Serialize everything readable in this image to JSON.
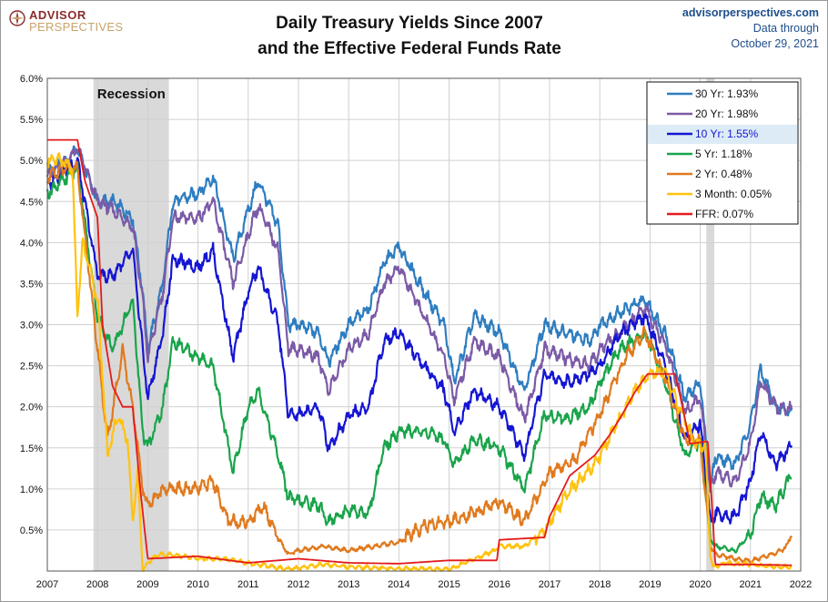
{
  "logo": {
    "line1": "ADVISOR",
    "line2": "PERSPECTIVES"
  },
  "title": {
    "line1": "Daily Treasury Yields Since 2007",
    "line2": "and the Effective Federal Funds Rate"
  },
  "source": {
    "site": "advisorperspectives.com",
    "line2": "Data through",
    "line3": "October 29, 2021"
  },
  "chart_data": {
    "type": "line",
    "title": "Daily Treasury Yields Since 2007 and the Effective Federal Funds Rate",
    "xlabel": "",
    "ylabel": "",
    "xlim": [
      2007,
      2022
    ],
    "ylim": [
      0,
      6
    ],
    "x_ticks": [
      "2007",
      "2008",
      "2009",
      "2010",
      "2011",
      "2012",
      "2013",
      "2014",
      "2015",
      "2016",
      "2017",
      "2018",
      "2019",
      "2020",
      "2021",
      "2022"
    ],
    "y_ticks": [
      "6.0%",
      "5.5%",
      "5.0%",
      "4.5%",
      "4.0%",
      "3.5%",
      "3.0%",
      "2.5%",
      "2.0%",
      "1.5%",
      "1.0%",
      "0.5%"
    ],
    "grid": true,
    "legend_position": "top-right",
    "shaded_regions": [
      {
        "label": "Recession",
        "start": 2007.92,
        "end": 2009.42,
        "color": "#d9d9d9"
      },
      {
        "label": "",
        "start": 2020.12,
        "end": 2020.28,
        "color": "#d9d9d9"
      }
    ],
    "series": [
      {
        "name": "30 Yr",
        "legend": "30 Yr: 1.93%",
        "color": "#2e7dc0",
        "x": [
          2007.0,
          2007.4,
          2007.6,
          2008.0,
          2008.3,
          2008.7,
          2008.9,
          2009.0,
          2009.3,
          2009.5,
          2010.0,
          2010.3,
          2010.7,
          2011.0,
          2011.2,
          2011.6,
          2011.8,
          2012.0,
          2012.4,
          2012.6,
          2013.0,
          2013.4,
          2013.7,
          2014.0,
          2014.5,
          2014.9,
          2015.1,
          2015.5,
          2016.0,
          2016.5,
          2016.9,
          2017.3,
          2017.8,
          2018.0,
          2018.4,
          2018.9,
          2019.3,
          2019.7,
          2020.0,
          2020.2,
          2020.3,
          2020.7,
          2021.0,
          2021.2,
          2021.5,
          2021.83
        ],
        "values": [
          4.85,
          5.0,
          5.15,
          4.5,
          4.5,
          4.3,
          3.4,
          2.7,
          3.5,
          4.5,
          4.6,
          4.8,
          3.8,
          4.4,
          4.75,
          4.2,
          3.0,
          3.0,
          2.9,
          2.55,
          3.0,
          3.2,
          3.75,
          3.95,
          3.4,
          3.0,
          2.3,
          3.1,
          2.9,
          2.2,
          3.0,
          2.9,
          2.8,
          3.0,
          3.15,
          3.3,
          2.9,
          2.1,
          2.3,
          1.0,
          1.4,
          1.3,
          1.8,
          2.45,
          2.0,
          1.93
        ]
      },
      {
        "name": "20 Yr",
        "legend": "20 Yr: 1.98%",
        "color": "#7b5aa6",
        "x": [
          2007.0,
          2007.4,
          2007.6,
          2008.0,
          2008.3,
          2008.7,
          2008.9,
          2009.0,
          2009.3,
          2009.5,
          2010.0,
          2010.3,
          2010.7,
          2011.0,
          2011.2,
          2011.6,
          2011.8,
          2012.0,
          2012.4,
          2012.6,
          2013.0,
          2013.4,
          2013.7,
          2014.0,
          2014.5,
          2014.9,
          2015.1,
          2015.5,
          2016.0,
          2016.5,
          2016.9,
          2017.3,
          2017.8,
          2018.0,
          2018.4,
          2018.9,
          2019.3,
          2019.7,
          2020.0,
          2020.2,
          2020.3,
          2020.7,
          2021.0,
          2021.2,
          2021.5,
          2021.83
        ],
        "values": [
          4.8,
          5.0,
          5.15,
          4.5,
          4.4,
          4.2,
          3.3,
          2.6,
          3.4,
          4.3,
          4.3,
          4.5,
          3.5,
          4.1,
          4.45,
          3.9,
          2.7,
          2.7,
          2.6,
          2.2,
          2.7,
          2.9,
          3.5,
          3.7,
          3.1,
          2.6,
          2.1,
          2.8,
          2.6,
          1.85,
          2.7,
          2.6,
          2.5,
          2.7,
          2.9,
          3.2,
          2.75,
          1.95,
          2.1,
          1.0,
          1.2,
          1.1,
          1.55,
          2.3,
          2.0,
          1.98
        ]
      },
      {
        "name": "10 Yr",
        "legend": "10 Yr: 1.55%",
        "color": "#1515d4",
        "x": [
          2007.0,
          2007.4,
          2007.6,
          2008.0,
          2008.3,
          2008.7,
          2008.9,
          2009.0,
          2009.3,
          2009.5,
          2010.0,
          2010.3,
          2010.7,
          2011.0,
          2011.2,
          2011.6,
          2011.8,
          2012.0,
          2012.4,
          2012.6,
          2013.0,
          2013.4,
          2013.7,
          2014.0,
          2014.5,
          2014.9,
          2015.1,
          2015.5,
          2016.0,
          2016.5,
          2016.9,
          2017.3,
          2017.8,
          2018.0,
          2018.4,
          2018.9,
          2019.3,
          2019.7,
          2020.0,
          2020.2,
          2020.3,
          2020.7,
          2021.0,
          2021.2,
          2021.5,
          2021.83
        ],
        "values": [
          4.7,
          4.9,
          5.0,
          3.6,
          3.6,
          3.9,
          2.7,
          2.1,
          2.9,
          3.8,
          3.7,
          3.9,
          2.6,
          3.4,
          3.7,
          3.0,
          1.9,
          1.9,
          2.0,
          1.5,
          1.9,
          2.0,
          2.8,
          2.9,
          2.5,
          2.2,
          1.7,
          2.2,
          2.0,
          1.4,
          2.4,
          2.3,
          2.4,
          2.5,
          2.9,
          3.1,
          2.5,
          1.6,
          1.8,
          0.6,
          0.7,
          0.65,
          1.1,
          1.7,
          1.3,
          1.55
        ]
      },
      {
        "name": "5 Yr",
        "legend": "5 Yr: 1.18%",
        "color": "#19a44a",
        "x": [
          2007.0,
          2007.4,
          2007.6,
          2008.0,
          2008.3,
          2008.7,
          2008.9,
          2009.0,
          2009.3,
          2009.5,
          2010.0,
          2010.3,
          2010.7,
          2011.0,
          2011.2,
          2011.6,
          2011.8,
          2012.0,
          2012.4,
          2012.6,
          2013.0,
          2013.4,
          2013.7,
          2014.0,
          2014.5,
          2014.9,
          2015.1,
          2015.5,
          2016.0,
          2016.5,
          2016.9,
          2017.3,
          2017.8,
          2018.0,
          2018.4,
          2018.9,
          2019.3,
          2019.7,
          2020.0,
          2020.2,
          2020.3,
          2020.7,
          2021.0,
          2021.2,
          2021.5,
          2021.83
        ],
        "values": [
          4.6,
          4.8,
          4.9,
          3.1,
          2.7,
          3.3,
          1.7,
          1.5,
          2.0,
          2.8,
          2.6,
          2.5,
          1.2,
          2.0,
          2.2,
          1.4,
          0.9,
          0.85,
          0.8,
          0.6,
          0.75,
          0.7,
          1.5,
          1.7,
          1.7,
          1.6,
          1.3,
          1.6,
          1.5,
          1.0,
          1.9,
          1.85,
          2.0,
          2.3,
          2.7,
          2.9,
          2.3,
          1.4,
          1.6,
          0.4,
          0.3,
          0.25,
          0.45,
          0.9,
          0.8,
          1.18
        ]
      },
      {
        "name": "2 Yr",
        "legend": "2 Yr: 0.48%",
        "color": "#e07a1e",
        "x": [
          2007.0,
          2007.4,
          2007.6,
          2008.0,
          2008.2,
          2008.5,
          2008.7,
          2008.9,
          2009.0,
          2009.3,
          2009.6,
          2010.0,
          2010.3,
          2010.6,
          2011.0,
          2011.3,
          2011.6,
          2011.8,
          2012.0,
          2012.5,
          2013.0,
          2013.5,
          2014.0,
          2014.5,
          2015.0,
          2015.5,
          2016.0,
          2016.5,
          2017.0,
          2017.5,
          2018.0,
          2018.5,
          2018.9,
          2019.3,
          2019.7,
          2020.0,
          2020.2,
          2020.3,
          2020.7,
          2021.0,
          2021.5,
          2021.7,
          2021.83
        ],
        "values": [
          4.8,
          4.9,
          4.9,
          2.7,
          1.6,
          2.7,
          2.0,
          1.0,
          0.8,
          1.0,
          1.0,
          1.0,
          1.1,
          0.6,
          0.6,
          0.8,
          0.4,
          0.2,
          0.25,
          0.3,
          0.25,
          0.3,
          0.35,
          0.55,
          0.6,
          0.7,
          0.85,
          0.6,
          1.2,
          1.35,
          1.9,
          2.6,
          2.9,
          2.35,
          1.6,
          1.6,
          0.3,
          0.2,
          0.15,
          0.12,
          0.22,
          0.28,
          0.48
        ]
      },
      {
        "name": "3 Month",
        "legend": "3 Month: 0.05%",
        "color": "#ffc20e",
        "x": [
          2007.0,
          2007.3,
          2007.5,
          2007.6,
          2007.7,
          2007.8,
          2008.0,
          2008.2,
          2008.4,
          2008.6,
          2008.7,
          2008.8,
          2008.9,
          2009.0,
          2009.2,
          2009.5,
          2010.0,
          2010.5,
          2011.0,
          2011.5,
          2011.8,
          2012.5,
          2013.0,
          2014.0,
          2015.0,
          2015.9,
          2016.0,
          2016.5,
          2016.9,
          2017.2,
          2017.5,
          2017.9,
          2018.3,
          2018.7,
          2019.0,
          2019.3,
          2019.5,
          2019.9,
          2020.1,
          2020.2,
          2020.25,
          2020.5,
          2021.0,
          2021.5,
          2021.83
        ],
        "values": [
          5.0,
          5.0,
          4.9,
          3.1,
          4.0,
          3.8,
          3.3,
          1.4,
          1.9,
          1.6,
          0.6,
          1.2,
          0.0,
          0.1,
          0.2,
          0.2,
          0.15,
          0.15,
          0.1,
          0.05,
          0.02,
          0.08,
          0.05,
          0.03,
          0.02,
          0.25,
          0.3,
          0.3,
          0.5,
          0.8,
          1.05,
          1.3,
          1.75,
          2.2,
          2.4,
          2.45,
          2.1,
          1.55,
          1.55,
          0.2,
          0.05,
          0.1,
          0.08,
          0.05,
          0.05
        ]
      },
      {
        "name": "FFR",
        "legend": "FFR: 0.07%",
        "color": "#e31a1c",
        "x": [
          2007.0,
          2007.6,
          2007.75,
          2008.0,
          2008.1,
          2008.3,
          2008.5,
          2008.7,
          2008.85,
          2009.0,
          2010.0,
          2011.0,
          2012.0,
          2013.0,
          2014.0,
          2015.0,
          2015.95,
          2016.0,
          2016.9,
          2017.0,
          2017.2,
          2017.4,
          2017.9,
          2018.2,
          2018.45,
          2018.7,
          2018.95,
          2019.5,
          2019.6,
          2019.8,
          2020.15,
          2020.25,
          2020.3,
          2021.0,
          2021.83
        ],
        "values": [
          5.25,
          5.25,
          4.75,
          4.3,
          3.0,
          2.25,
          2.0,
          2.0,
          1.0,
          0.15,
          0.18,
          0.1,
          0.15,
          0.1,
          0.09,
          0.13,
          0.13,
          0.38,
          0.41,
          0.66,
          0.91,
          1.16,
          1.41,
          1.66,
          1.91,
          2.18,
          2.4,
          2.4,
          2.13,
          1.55,
          1.58,
          0.65,
          0.08,
          0.08,
          0.07
        ]
      }
    ]
  }
}
